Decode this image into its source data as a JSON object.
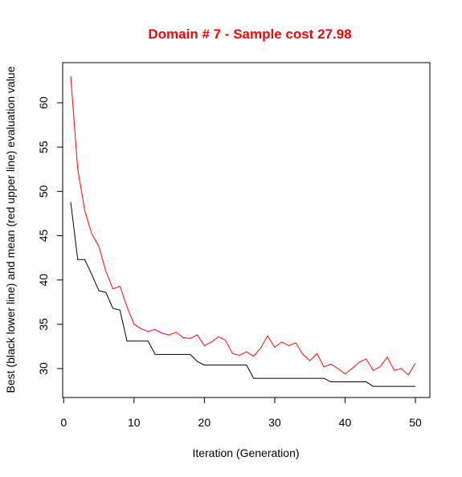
{
  "chart_data": {
    "type": "line",
    "title": "Domain # 7  - Sample cost 27.98",
    "title_color": "#ff0000",
    "xlabel": "Iteration (Generation)",
    "ylabel": "Best (black lower line) and mean (red upper line) evaluation value",
    "xlim": [
      0,
      52
    ],
    "ylim": [
      28.0,
      65.0
    ],
    "xticks": [
      0,
      10,
      20,
      30,
      40,
      50
    ],
    "yticks": [
      30,
      35,
      40,
      45,
      50,
      55,
      60
    ],
    "grid": false,
    "legend": "none",
    "x": [
      1,
      2,
      3,
      4,
      5,
      6,
      7,
      8,
      9,
      10,
      11,
      12,
      13,
      14,
      15,
      16,
      17,
      18,
      19,
      20,
      21,
      22,
      23,
      24,
      25,
      26,
      27,
      28,
      29,
      30,
      31,
      32,
      33,
      34,
      35,
      36,
      37,
      38,
      39,
      40,
      41,
      42,
      43,
      44,
      45,
      46,
      47,
      48,
      49,
      50
    ],
    "series": [
      {
        "color": "#ff0000",
        "values": [
          63.0,
          52.5,
          47.8,
          45.2,
          43.8,
          41.0,
          39.0,
          39.3,
          37.0,
          35.0,
          34.5,
          34.2,
          34.4,
          34.0,
          33.8,
          34.1,
          33.5,
          33.4,
          33.8,
          32.6,
          33.0,
          33.6,
          33.2,
          31.7,
          31.5,
          31.9,
          31.4,
          32.3,
          33.7,
          32.4,
          33.0,
          32.6,
          32.9,
          31.6,
          30.9,
          31.7,
          30.2,
          30.5,
          30.0,
          29.4,
          30.0,
          30.7,
          31.1,
          29.8,
          30.2,
          31.3,
          29.8,
          30.0,
          29.3,
          30.6
        ]
      },
      {
        "color": "#000000",
        "values": [
          48.8,
          42.3,
          42.3,
          40.6,
          38.8,
          38.6,
          36.8,
          36.6,
          33.1,
          33.1,
          33.1,
          33.1,
          31.6,
          31.6,
          31.6,
          31.6,
          31.6,
          31.6,
          30.8,
          30.4,
          30.4,
          30.4,
          30.4,
          30.4,
          30.4,
          30.4,
          28.9,
          28.9,
          28.9,
          28.9,
          28.9,
          28.9,
          28.9,
          28.9,
          28.9,
          28.9,
          28.9,
          28.5,
          28.5,
          28.5,
          28.5,
          28.5,
          28.5,
          28.0,
          28.0,
          28.0,
          28.0,
          28.0,
          28.0,
          28.0
        ]
      }
    ]
  }
}
